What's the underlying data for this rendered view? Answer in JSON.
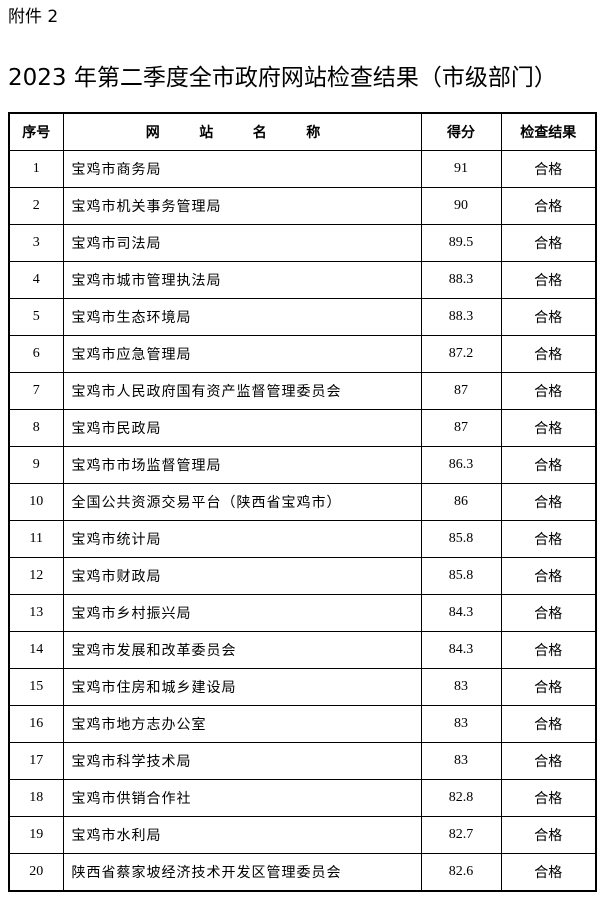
{
  "header": {
    "attachment": "附件 2",
    "title": "2023 年第二季度全市政府网站检查结果（市级部门）"
  },
  "table": {
    "columns": [
      "序号",
      "网 站 名 称",
      "得分",
      "检查结果"
    ],
    "rows": [
      [
        "1",
        "宝鸡市商务局",
        "91",
        "合格"
      ],
      [
        "2",
        "宝鸡市机关事务管理局",
        "90",
        "合格"
      ],
      [
        "3",
        "宝鸡市司法局",
        "89.5",
        "合格"
      ],
      [
        "4",
        "宝鸡市城市管理执法局",
        "88.3",
        "合格"
      ],
      [
        "5",
        "宝鸡市生态环境局",
        "88.3",
        "合格"
      ],
      [
        "6",
        "宝鸡市应急管理局",
        "87.2",
        "合格"
      ],
      [
        "7",
        "宝鸡市人民政府国有资产监督管理委员会",
        "87",
        "合格"
      ],
      [
        "8",
        "宝鸡市民政局",
        "87",
        "合格"
      ],
      [
        "9",
        "宝鸡市市场监督管理局",
        "86.3",
        "合格"
      ],
      [
        "10",
        "全国公共资源交易平台（陕西省宝鸡市）",
        "86",
        "合格"
      ],
      [
        "11",
        "宝鸡市统计局",
        "85.8",
        "合格"
      ],
      [
        "12",
        "宝鸡市财政局",
        "85.8",
        "合格"
      ],
      [
        "13",
        "宝鸡市乡村振兴局",
        "84.3",
        "合格"
      ],
      [
        "14",
        "宝鸡市发展和改革委员会",
        "84.3",
        "合格"
      ],
      [
        "15",
        "宝鸡市住房和城乡建设局",
        "83",
        "合格"
      ],
      [
        "16",
        "宝鸡市地方志办公室",
        "83",
        "合格"
      ],
      [
        "17",
        "宝鸡市科学技术局",
        "83",
        "合格"
      ],
      [
        "18",
        "宝鸡市供销合作社",
        "82.8",
        "合格"
      ],
      [
        "19",
        "宝鸡市水利局",
        "82.7",
        "合格"
      ],
      [
        "20",
        "陕西省蔡家坡经济技术开发区管理委员会",
        "82.6",
        "合格"
      ]
    ]
  }
}
